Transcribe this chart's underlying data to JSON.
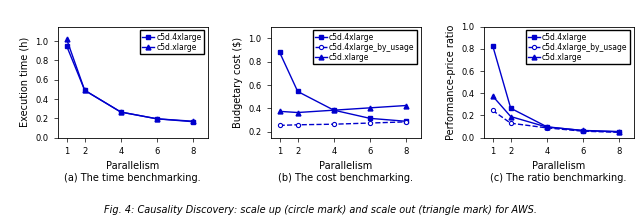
{
  "parallelism": [
    1,
    2,
    4,
    6,
    8
  ],
  "subplot1": {
    "title": "(a) The time benchmarking.",
    "ylabel": "Execution time (h)",
    "xlabel": "Parallelism",
    "c5d_4xlarge": [
      0.95,
      0.49,
      0.265,
      0.195,
      0.165
    ],
    "c5d_xlarge": [
      1.02,
      0.49,
      0.265,
      0.195,
      0.17
    ],
    "ylim": [
      0.0,
      1.15
    ]
  },
  "subplot2": {
    "title": "(b) The cost benchmarking.",
    "ylabel": "Budgetary cost ($)",
    "xlabel": "Parallelism",
    "c5d_4xlarge": [
      0.88,
      0.545,
      0.385,
      0.315,
      0.29
    ],
    "c5d_4xlarge_by_usage": [
      0.255,
      0.26,
      0.265,
      0.275,
      0.285
    ],
    "c5d_xlarge": [
      0.375,
      0.365,
      0.385,
      0.405,
      0.425
    ],
    "ylim": [
      0.15,
      1.1
    ]
  },
  "subplot3": {
    "title": "(c) The ratio benchmarking.",
    "ylabel": "Performance-price ratio",
    "xlabel": "Parallelism",
    "c5d_4xlarge": [
      0.83,
      0.265,
      0.098,
      0.063,
      0.052
    ],
    "c5d_4xlarge_by_usage": [
      0.245,
      0.13,
      0.088,
      0.058,
      0.048
    ],
    "c5d_xlarge": [
      0.375,
      0.19,
      0.095,
      0.065,
      0.055
    ],
    "ylim": [
      0.0,
      1.0
    ]
  },
  "line_color": "#0000cc",
  "caption": "Fig. 4: Causality Discovery: scale up (circle mark) and scale out (triangle mark) for AWS."
}
